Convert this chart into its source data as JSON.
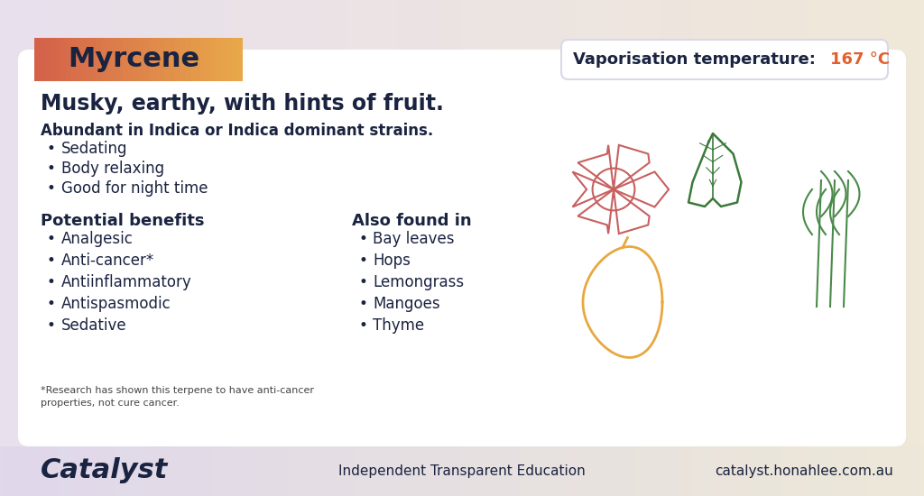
{
  "title": "Myrcene",
  "subtitle": "Musky, earthy, with hints of fruit.",
  "strain_info": "Abundant in Indica or Indica dominant strains.",
  "effects": [
    "Sedating",
    "Body relaxing",
    "Good for night time"
  ],
  "potential_benefits_title": "Potential benefits",
  "potential_benefits": [
    "Analgesic",
    "Anti-cancer*",
    "Antiinflammatory",
    "Antispasmodic",
    "Sedative"
  ],
  "also_found_title": "Also found in",
  "also_found": [
    "Bay leaves",
    "Hops",
    "Lemongrass",
    "Mangoes",
    "Thyme"
  ],
  "vaporisation_label": "Vaporisation temperature:",
  "vaporisation_value": "167 °C",
  "disclaimer": "*Research has shown this terpene to have anti-cancer\nproperties, not cure cancer.",
  "footer_brand": "Catalyst",
  "footer_center": "Independent Transparent Education",
  "footer_right": "catalyst.honahlee.com.au",
  "bg_outer": [
    "#e8e0ed",
    "#f0e8d8"
  ],
  "bg_card": "#ffffff",
  "title_box_color_left": "#d4614a",
  "title_box_color_right": "#e8a84a",
  "title_text_color": "#1a2340",
  "dark_text": "#1a2340",
  "orange_text": "#e06030",
  "vap_box_border": "#e0e0e8",
  "bullet_color": "#1a2340",
  "illustration_rose_color": "#d47070",
  "illustration_leaf_color": "#3a7a3a",
  "illustration_mango_color": "#e8a840",
  "illustration_lemongrass_color": "#4a8a4a"
}
